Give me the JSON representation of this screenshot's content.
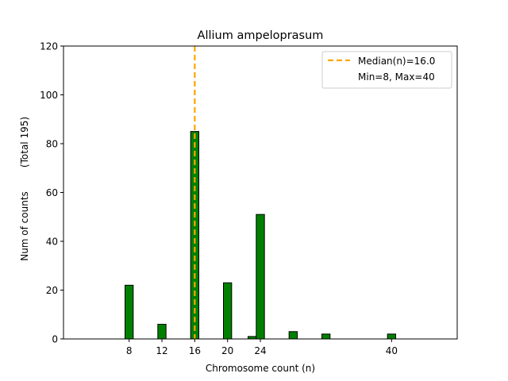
{
  "chart_data": {
    "type": "bar",
    "title": "Allium ampeloprasum",
    "xlabel": "Chromosome count (n)",
    "ylabel": "Num of counts",
    "ylabel_secondary": "(Total 195)",
    "xlim": [
      0,
      48
    ],
    "ylim": [
      0,
      120
    ],
    "x_ticks": [
      8,
      12,
      16,
      20,
      24,
      40
    ],
    "y_ticks": [
      0,
      20,
      40,
      60,
      80,
      100,
      120
    ],
    "bar_width": 1,
    "bar_color": "#008000",
    "bar_edge_color": "#000000",
    "median": 16.0,
    "median_color": "#FFA500",
    "grid": false,
    "legend_position": "top-right",
    "legend": {
      "median_label": "Median(n)=16.0",
      "range_label": "Min=8, Max=40"
    },
    "bars": [
      {
        "x": 8,
        "value": 22
      },
      {
        "x": 12,
        "value": 6
      },
      {
        "x": 16,
        "value": 85
      },
      {
        "x": 20,
        "value": 23
      },
      {
        "x": 23,
        "value": 1
      },
      {
        "x": 24,
        "value": 51
      },
      {
        "x": 28,
        "value": 3
      },
      {
        "x": 32,
        "value": 2
      },
      {
        "x": 40,
        "value": 2
      }
    ]
  }
}
